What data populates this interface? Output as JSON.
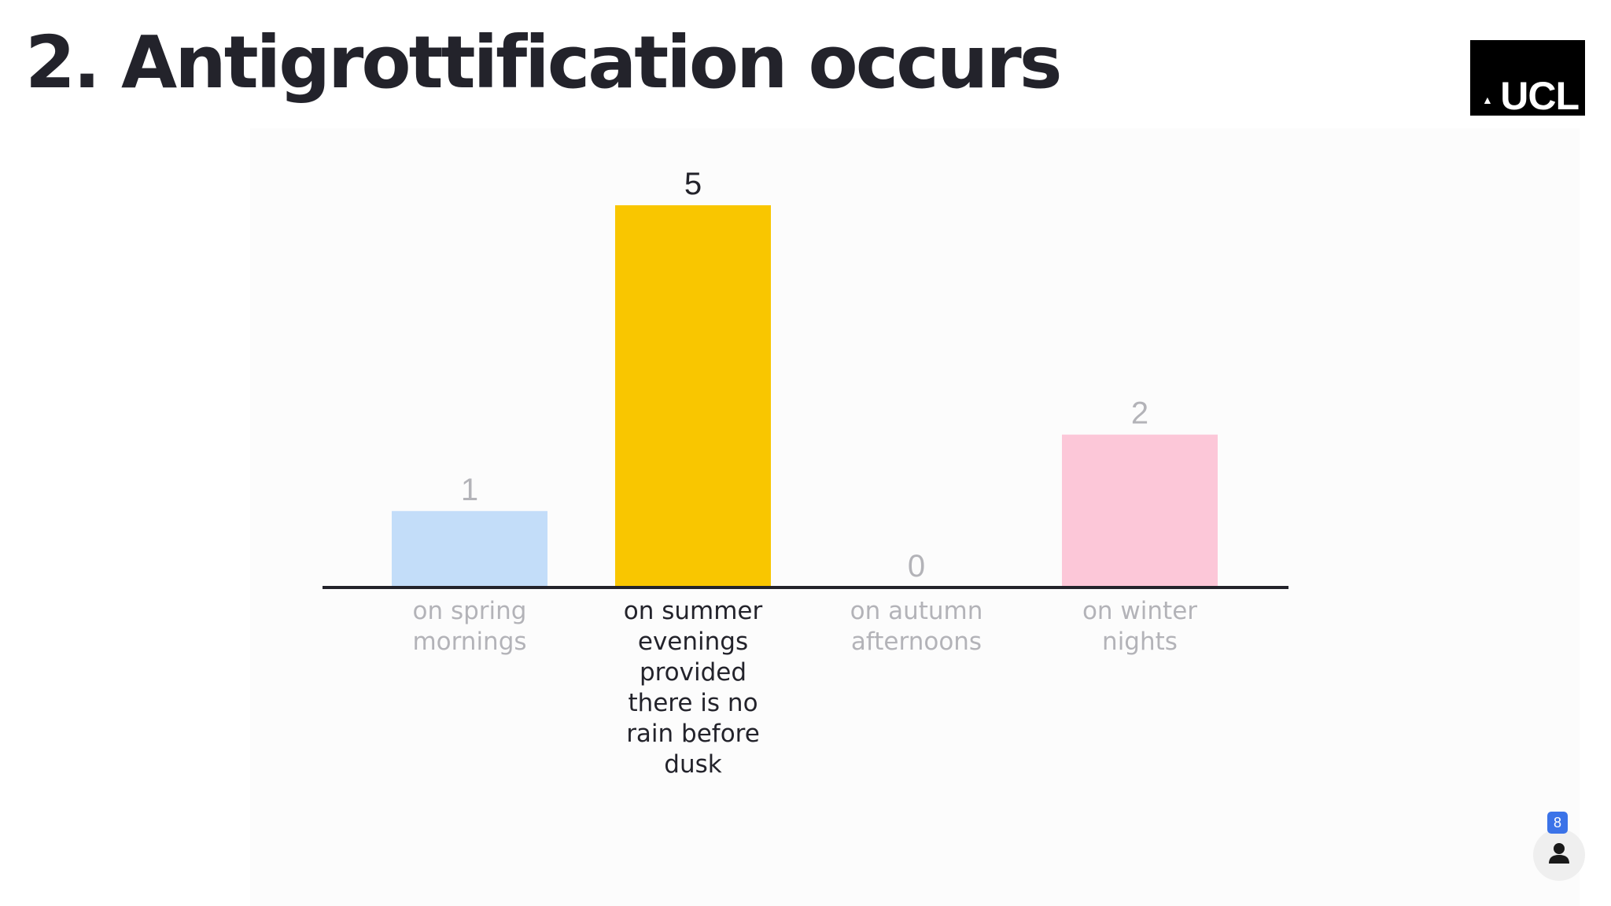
{
  "slide": {
    "title": "2. Antigrottification occurs",
    "logo_text": "UCL",
    "logo_mark": "dome-icon",
    "participants": {
      "count": "8",
      "icon": "person-icon"
    }
  },
  "colors": {
    "title": "#23232b",
    "axis": "#23232b",
    "highlight_text": "#23232b",
    "muted_text": "#b3b3b8",
    "bars": [
      "#c3ddf9",
      "#f9c600",
      "#cfe1f6",
      "#fcc7d8"
    ],
    "badge": "#3b73e8"
  },
  "chart_data": {
    "type": "bar",
    "categories": [
      "on spring mornings",
      "on summer evenings provided there is no rain before dusk",
      "on autumn afternoons",
      "on winter nights"
    ],
    "category_lines": [
      [
        "on spring",
        "mornings"
      ],
      [
        "on summer",
        "evenings",
        "provided",
        "there is no",
        "rain before",
        "dusk"
      ],
      [
        "on autumn",
        "afternoons"
      ],
      [
        "on winter",
        "nights"
      ]
    ],
    "values": [
      1,
      5,
      0,
      2
    ],
    "highlighted_index": 1,
    "ylim": [
      0,
      5
    ],
    "grid": false,
    "title": "",
    "xlabel": "",
    "ylabel": ""
  }
}
